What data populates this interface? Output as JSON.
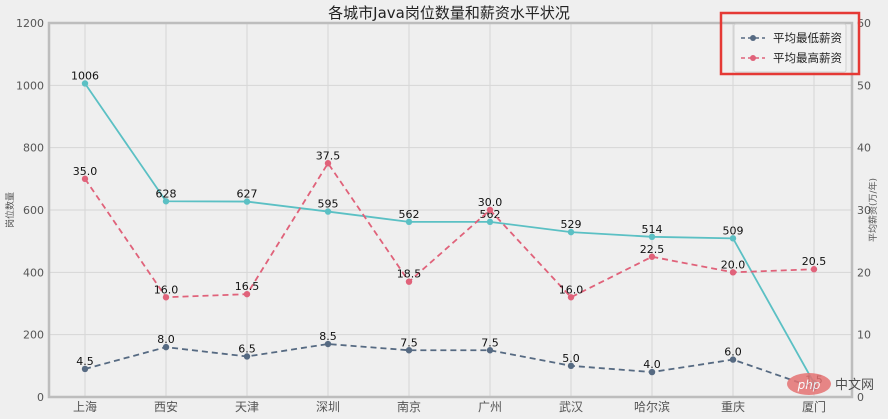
{
  "chart_data": {
    "type": "line",
    "title": "各城市Java岗位数量和薪资水平状况",
    "categories": [
      "上海",
      "西安",
      "天津",
      "深圳",
      "南京",
      "广州",
      "武汉",
      "哈尔滨",
      "重庆",
      "厦门"
    ],
    "series": [
      {
        "name": "岗位数量",
        "axis": "left",
        "color": "#5bc0c4",
        "style": "solid",
        "values": [
          1006,
          628,
          627,
          595,
          562,
          562,
          529,
          514,
          509,
          45
        ],
        "labels": [
          "1006",
          "628",
          "627",
          "595",
          "562",
          "562",
          "529",
          "514",
          "509",
          ""
        ]
      },
      {
        "name": "平均最低薪资",
        "axis": "right",
        "color": "#566a82",
        "style": "dashed",
        "values": [
          4.5,
          8.0,
          6.5,
          8.5,
          7.5,
          7.5,
          5.0,
          4.0,
          6.0,
          1.5
        ],
        "labels": [
          "4.5",
          "8.0",
          "6.5",
          "8.5",
          "7.5",
          "7.5",
          "5.0",
          "4.0",
          "6.0",
          "1.5"
        ]
      },
      {
        "name": "平均最高薪资",
        "axis": "right",
        "color": "#e0627a",
        "style": "dashed",
        "values": [
          35.0,
          16.0,
          16.5,
          37.5,
          18.5,
          30.0,
          16.0,
          22.5,
          20.0,
          20.5
        ],
        "labels": [
          "35.0",
          "16.0",
          "16.5",
          "37.5",
          "18.5",
          "30.0",
          "16.0",
          "22.5",
          "20.0",
          "20.5"
        ]
      }
    ],
    "xlabel": "",
    "ylabel": "岗位数量",
    "y2label": "平均薪资(万/年)",
    "ylim": [
      0,
      1200
    ],
    "y2lim": [
      0,
      60
    ],
    "yticks": [
      0,
      200,
      400,
      600,
      800,
      1000,
      1200
    ],
    "y2ticks": [
      0,
      10,
      20,
      30,
      40,
      50,
      60
    ],
    "grid": true,
    "legend": {
      "position": "upper right",
      "entries": [
        "平均最低薪资",
        "平均最高薪资"
      ]
    }
  },
  "annotation": {
    "highlight_box_color": "#e53935"
  },
  "watermark": {
    "logo": "php",
    "text": "中文网"
  }
}
